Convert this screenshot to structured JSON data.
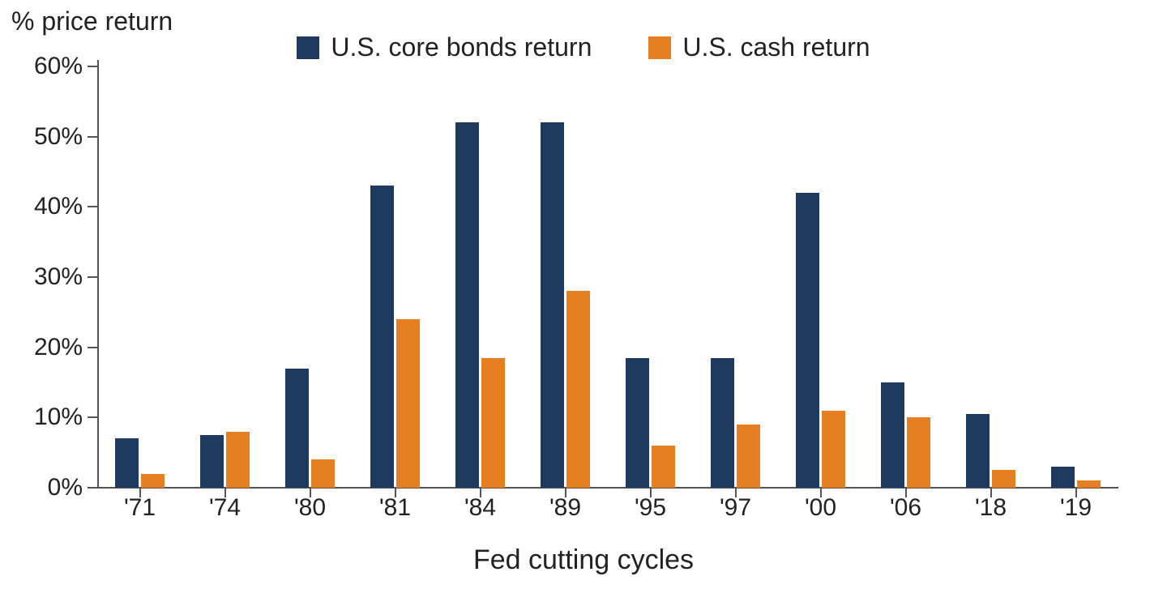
{
  "chart": {
    "type": "bar",
    "y_title": "% price return",
    "x_label": "Fed cutting cycles",
    "legend": {
      "series1": {
        "label": "U.S. core bonds return",
        "color": "#1e3a5f"
      },
      "series2": {
        "label": "U.S. cash return",
        "color": "#e67e22"
      }
    },
    "ylim": [
      0,
      60
    ],
    "ytick_step": 10,
    "ytick_suffix": "%",
    "categories": [
      "'71",
      "'74",
      "'80",
      "'81",
      "'84",
      "'89",
      "'95",
      "'97",
      "'00",
      "'06",
      "'18",
      "'19"
    ],
    "series1_values": [
      7,
      7.5,
      17,
      43,
      52,
      52,
      18.5,
      18.5,
      42,
      15,
      10.5,
      3
    ],
    "series2_values": [
      2,
      8,
      4,
      24,
      18.5,
      28,
      6,
      9,
      11,
      10,
      2.5,
      1
    ],
    "bar_colors": {
      "series1": "#1e3a5f",
      "series2": "#e67e22"
    },
    "background_color": "#ffffff",
    "axis_color": "#555555",
    "text_color": "#222222",
    "tick_fontsize": 30,
    "title_fontsize": 32,
    "xlabel_fontsize": 34,
    "bar_group_width": 0.58,
    "bar_gap": 0.02
  }
}
